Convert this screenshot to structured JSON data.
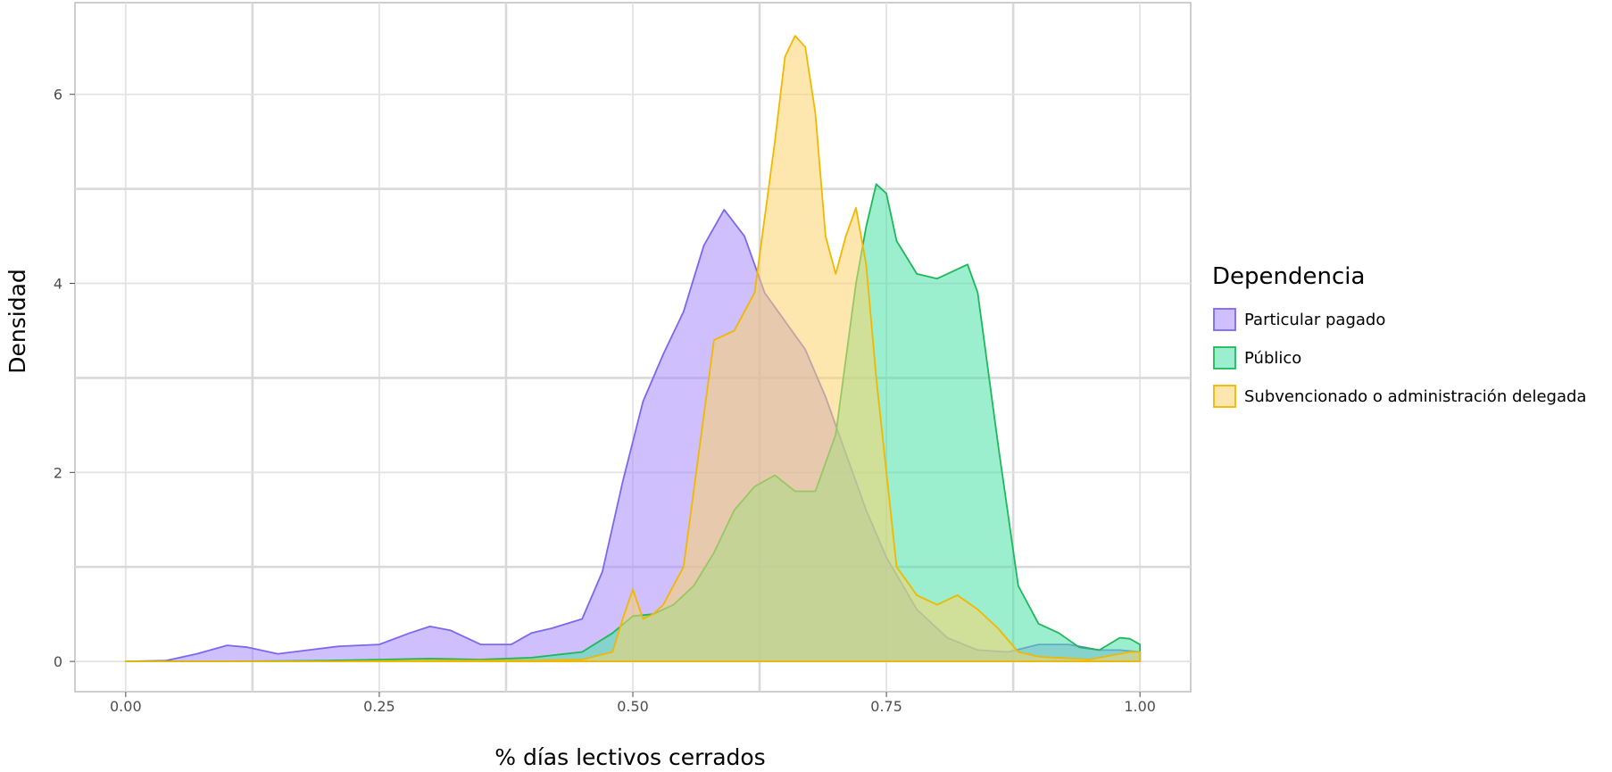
{
  "chart_data": {
    "type": "area",
    "subtype": "density",
    "xlabel": "% días lectivos cerrados",
    "ylabel": "Densidad",
    "xlim": [
      -0.05,
      1.05
    ],
    "ylim": [
      -0.32,
      6.97
    ],
    "x_ticks": [
      0.0,
      0.25,
      0.5,
      0.75,
      1.0
    ],
    "x_tick_labels": [
      "0.00",
      "0.25",
      "0.50",
      "0.75",
      "1.00"
    ],
    "y_ticks": [
      0,
      2,
      4,
      6
    ],
    "y_tick_labels": [
      "0",
      "2",
      "4",
      "6"
    ],
    "grid": true,
    "legend": {
      "title": "Dependencia",
      "position": "right"
    },
    "series": [
      {
        "name": "Particular pagado",
        "fill": "#a78bfa",
        "stroke": "#7b68ee",
        "x": [
          0.0,
          0.04,
          0.07,
          0.1,
          0.12,
          0.15,
          0.18,
          0.21,
          0.25,
          0.28,
          0.3,
          0.32,
          0.35,
          0.38,
          0.4,
          0.42,
          0.45,
          0.47,
          0.49,
          0.51,
          0.53,
          0.55,
          0.57,
          0.59,
          0.61,
          0.63,
          0.65,
          0.67,
          0.69,
          0.71,
          0.73,
          0.75,
          0.78,
          0.81,
          0.84,
          0.87,
          0.9,
          0.93,
          0.96,
          0.98,
          1.0
        ],
        "y": [
          0.0,
          0.01,
          0.08,
          0.17,
          0.15,
          0.08,
          0.12,
          0.16,
          0.18,
          0.3,
          0.37,
          0.33,
          0.18,
          0.18,
          0.3,
          0.35,
          0.45,
          0.95,
          1.9,
          2.75,
          3.25,
          3.7,
          4.4,
          4.78,
          4.5,
          3.9,
          3.6,
          3.3,
          2.8,
          2.2,
          1.6,
          1.1,
          0.55,
          0.25,
          0.12,
          0.1,
          0.18,
          0.18,
          0.12,
          0.12,
          0.1
        ]
      },
      {
        "name": "Público",
        "fill": "#4ae1a6",
        "stroke": "#1eb85a",
        "x": [
          0.0,
          0.1,
          0.2,
          0.3,
          0.35,
          0.4,
          0.45,
          0.48,
          0.5,
          0.52,
          0.54,
          0.56,
          0.58,
          0.6,
          0.62,
          0.64,
          0.66,
          0.68,
          0.7,
          0.72,
          0.73,
          0.74,
          0.75,
          0.76,
          0.78,
          0.8,
          0.81,
          0.83,
          0.84,
          0.86,
          0.88,
          0.9,
          0.92,
          0.94,
          0.96,
          0.98,
          0.99,
          1.0
        ],
        "y": [
          0.0,
          0.0,
          0.01,
          0.03,
          0.02,
          0.04,
          0.1,
          0.3,
          0.48,
          0.5,
          0.6,
          0.8,
          1.15,
          1.6,
          1.85,
          1.97,
          1.8,
          1.8,
          2.4,
          4.0,
          4.6,
          5.05,
          4.95,
          4.45,
          4.1,
          4.05,
          4.1,
          4.2,
          3.9,
          2.3,
          0.8,
          0.4,
          0.3,
          0.15,
          0.12,
          0.25,
          0.24,
          0.18
        ]
      },
      {
        "name": "Subvencionado o administración delegada",
        "fill": "#fcd36b",
        "stroke": "#f0b800",
        "x": [
          0.0,
          0.1,
          0.2,
          0.3,
          0.4,
          0.45,
          0.48,
          0.49,
          0.5,
          0.51,
          0.52,
          0.53,
          0.55,
          0.57,
          0.58,
          0.6,
          0.62,
          0.64,
          0.65,
          0.66,
          0.67,
          0.68,
          0.69,
          0.7,
          0.71,
          0.72,
          0.73,
          0.74,
          0.75,
          0.76,
          0.78,
          0.8,
          0.82,
          0.84,
          0.86,
          0.88,
          0.9,
          0.95,
          0.99,
          1.0
        ],
        "y": [
          0.0,
          0.0,
          0.0,
          0.01,
          0.01,
          0.02,
          0.1,
          0.45,
          0.76,
          0.45,
          0.5,
          0.6,
          1.0,
          2.6,
          3.4,
          3.5,
          3.9,
          5.5,
          6.4,
          6.62,
          6.5,
          5.8,
          4.5,
          4.1,
          4.5,
          4.8,
          4.2,
          3.0,
          2.0,
          1.0,
          0.7,
          0.6,
          0.7,
          0.55,
          0.35,
          0.1,
          0.05,
          0.02,
          0.1,
          0.1
        ]
      }
    ]
  }
}
